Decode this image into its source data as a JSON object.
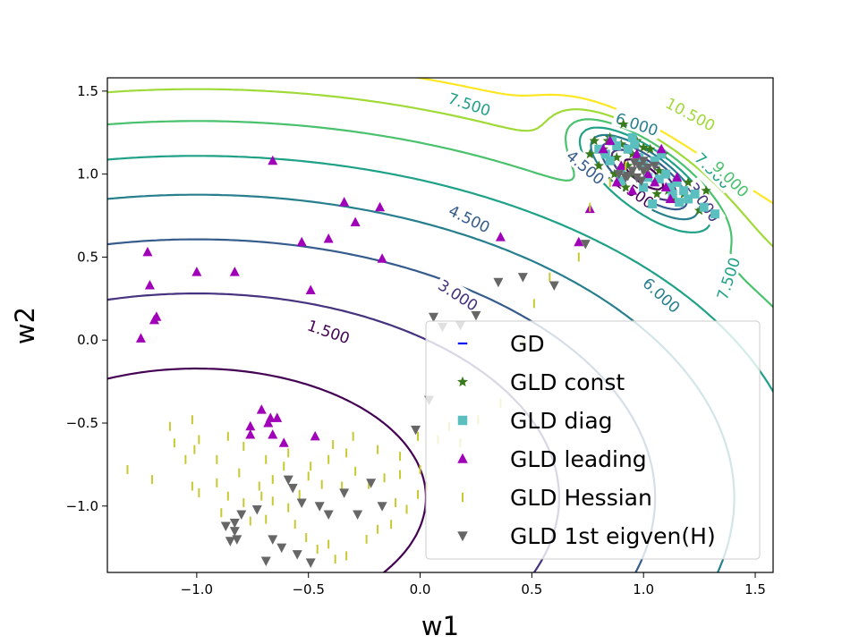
{
  "chart_data": {
    "type": "scatter",
    "title": "",
    "xlabel": "w1",
    "ylabel": "w2",
    "xlim": [
      -1.4,
      1.58
    ],
    "ylim": [
      -1.4,
      1.58
    ],
    "xticks": [
      -1.0,
      -0.5,
      0.0,
      0.5,
      1.0,
      1.5
    ],
    "xtick_labels": [
      "−1.0",
      "−0.5",
      "0.0",
      "0.5",
      "1.0",
      "1.5"
    ],
    "yticks": [
      -1.0,
      -0.5,
      0.0,
      0.5,
      1.0,
      1.5
    ],
    "ytick_labels": [
      "−1.0",
      "−0.5",
      "0.0",
      "0.5",
      "1.0",
      "1.5"
    ],
    "grid": false,
    "legend_position": "lower-right",
    "contours": {
      "levels": [
        1.5,
        3.0,
        4.5,
        6.0,
        7.5,
        9.0,
        10.5,
        12.0
      ],
      "labels": [
        "1.500",
        "3.000",
        "4.500",
        "6.000",
        "7.500",
        "9.000",
        "10.500"
      ],
      "colors": [
        "#440154",
        "#46327e",
        "#365c8d",
        "#277f8e",
        "#1fa187",
        "#4ac16d",
        "#a0da39",
        "#fde725"
      ],
      "inline_labels": [
        {
          "text": "1.500",
          "x": -0.41,
          "y": 0.05,
          "color": "#440154",
          "angle": 19
        },
        {
          "text": "3.000",
          "x": 0.17,
          "y": 0.27,
          "color": "#46327e",
          "angle": 33
        },
        {
          "text": "4.500",
          "x": 0.22,
          "y": 0.73,
          "color": "#365c8d",
          "angle": 26
        },
        {
          "text": "6.000",
          "x": 1.08,
          "y": 0.27,
          "color": "#277f8e",
          "angle": 42
        },
        {
          "text": "7.500",
          "x": 0.22,
          "y": 1.42,
          "color": "#1fa187",
          "angle": 18
        },
        {
          "text": "10.500",
          "x": 1.21,
          "y": 1.36,
          "color": "#a0da39",
          "angle": 28
        },
        {
          "text": "6.000",
          "x": 0.97,
          "y": 1.3,
          "color": "#277f8e",
          "angle": 18
        },
        {
          "text": "4.500",
          "x": 0.74,
          "y": 1.04,
          "color": "#365c8d",
          "angle": 40
        },
        {
          "text": "1.500",
          "x": 0.96,
          "y": 0.89,
          "color": "#440154",
          "angle": 35
        },
        {
          "text": "3.000",
          "x": 1.27,
          "y": 0.83,
          "color": "#46327e",
          "angle": 55
        },
        {
          "text": "7.500",
          "x": 1.31,
          "y": 1.02,
          "color": "#1fa187",
          "angle": 45
        },
        {
          "text": "9.000",
          "x": 1.39,
          "y": 0.97,
          "color": "#4ac16d",
          "angle": 45
        },
        {
          "text": "7.500",
          "x": 1.38,
          "y": 0.37,
          "color": "#1fa187",
          "angle": -72
        }
      ]
    },
    "series": [
      {
        "name": "GD",
        "marker": "hline",
        "color": "#0000ff",
        "points": []
      },
      {
        "name": "GLD const",
        "marker": "star",
        "color": "#3a7a1c",
        "points": [
          [
            0.78,
            1.2
          ],
          [
            0.82,
            1.15
          ],
          [
            0.85,
            1.22
          ],
          [
            0.88,
            1.1
          ],
          [
            0.9,
            1.18
          ],
          [
            0.93,
            1.05
          ],
          [
            0.95,
            1.12
          ],
          [
            0.97,
            1.2
          ],
          [
            0.99,
            1.08
          ],
          [
            1.01,
            1.0
          ],
          [
            1.03,
            1.15
          ],
          [
            1.05,
            0.95
          ],
          [
            1.07,
            1.02
          ],
          [
            1.09,
            1.12
          ],
          [
            0.87,
            1.0
          ],
          [
            0.89,
            0.95
          ],
          [
            0.92,
            0.92
          ],
          [
            1.11,
            0.9
          ],
          [
            1.13,
            0.85
          ],
          [
            1.18,
            0.88
          ],
          [
            1.25,
            0.78
          ],
          [
            1.28,
            0.9
          ],
          [
            0.8,
            1.05
          ],
          [
            0.76,
            1.12
          ],
          [
            0.91,
            1.3
          ],
          [
            0.84,
            1.2
          ],
          [
            1.0,
            1.16
          ],
          [
            1.2,
            0.95
          ],
          [
            0.94,
            1.0
          ],
          [
            1.06,
            0.88
          ]
        ]
      },
      {
        "name": "GLD diag",
        "marker": "square",
        "color": "#5bbfc0",
        "points": [
          [
            0.8,
            1.15
          ],
          [
            0.85,
            1.08
          ],
          [
            0.88,
            1.17
          ],
          [
            0.9,
            1.02
          ],
          [
            0.93,
            1.15
          ],
          [
            0.96,
            1.18
          ],
          [
            0.98,
            1.1
          ],
          [
            1.0,
            1.05
          ],
          [
            1.02,
            0.98
          ],
          [
            1.05,
            1.08
          ],
          [
            1.08,
            1.12
          ],
          [
            1.1,
            1.0
          ],
          [
            1.12,
            0.92
          ],
          [
            1.15,
            0.95
          ],
          [
            1.18,
            0.9
          ],
          [
            1.2,
            0.85
          ],
          [
            1.23,
            0.88
          ],
          [
            1.27,
            0.8
          ],
          [
            1.32,
            0.76
          ],
          [
            0.95,
            1.22
          ],
          [
            0.86,
            1.2
          ],
          [
            1.0,
            0.92
          ],
          [
            1.04,
            0.82
          ],
          [
            1.13,
            0.88
          ],
          [
            0.83,
            1.12
          ],
          [
            0.9,
            0.96
          ],
          [
            1.07,
            0.97
          ],
          [
            1.16,
            0.83
          ]
        ]
      },
      {
        "name": "GLD leading",
        "marker": "triangle-up",
        "color": "#a000b8",
        "points": [
          [
            -0.66,
            1.08
          ],
          [
            -0.34,
            0.83
          ],
          [
            -0.18,
            0.8
          ],
          [
            -0.29,
            0.71
          ],
          [
            -0.41,
            0.61
          ],
          [
            -0.53,
            0.59
          ],
          [
            -0.17,
            0.49
          ],
          [
            -0.83,
            0.41
          ],
          [
            -1.0,
            0.41
          ],
          [
            -1.22,
            0.53
          ],
          [
            -1.21,
            0.33
          ],
          [
            -1.18,
            0.14
          ],
          [
            -1.19,
            0.12
          ],
          [
            -1.25,
            0.01
          ],
          [
            -0.49,
            0.3
          ],
          [
            0.36,
            0.62
          ],
          [
            0.71,
            0.59
          ],
          [
            0.76,
            0.79
          ],
          [
            -0.71,
            -0.42
          ],
          [
            -0.67,
            -0.47
          ],
          [
            -0.64,
            -0.47
          ],
          [
            -0.68,
            -0.5
          ],
          [
            -0.76,
            -0.52
          ],
          [
            -0.76,
            -0.57
          ],
          [
            -0.66,
            -0.57
          ],
          [
            -0.61,
            -0.62
          ],
          [
            -0.47,
            -0.58
          ],
          [
            0.82,
            1.15
          ],
          [
            0.9,
            1.05
          ],
          [
            0.97,
            1.12
          ],
          [
            1.02,
            1.0
          ],
          [
            1.05,
            0.95
          ],
          [
            1.1,
            0.92
          ],
          [
            1.15,
            0.98
          ],
          [
            0.88,
            0.95
          ],
          [
            0.95,
            0.9
          ],
          [
            1.08,
            1.15
          ],
          [
            0.85,
            1.2
          ],
          [
            1.12,
            0.85
          ]
        ]
      },
      {
        "name": "GLD Hessian",
        "marker": "vline",
        "color": "#c8c832",
        "points": [
          [
            -1.31,
            -0.78
          ],
          [
            -1.02,
            -0.88
          ],
          [
            -0.99,
            -0.92
          ],
          [
            -0.91,
            -0.86
          ],
          [
            -0.86,
            -0.94
          ],
          [
            -0.89,
            -1.04
          ],
          [
            -0.79,
            -0.98
          ],
          [
            -0.76,
            -1.09
          ],
          [
            -0.69,
            -1.08
          ],
          [
            -0.71,
            -0.94
          ],
          [
            -0.66,
            -0.97
          ],
          [
            -0.59,
            -1.01
          ],
          [
            -0.56,
            -1.11
          ],
          [
            -0.51,
            -1.19
          ],
          [
            -0.46,
            -1.26
          ],
          [
            -0.41,
            -1.23
          ],
          [
            -0.38,
            -1.32
          ],
          [
            -0.33,
            -1.3
          ],
          [
            -0.24,
            -1.2
          ],
          [
            -0.19,
            -1.14
          ],
          [
            -0.13,
            -1.11
          ],
          [
            -0.11,
            -0.98
          ],
          [
            -0.06,
            -1.02
          ],
          [
            -0.01,
            -0.93
          ],
          [
            -0.09,
            -0.81
          ],
          [
            -0.16,
            -0.83
          ],
          [
            -0.23,
            -0.87
          ],
          [
            -0.29,
            -0.79
          ],
          [
            -0.35,
            -0.88
          ],
          [
            -0.41,
            -0.72
          ],
          [
            -0.44,
            -0.87
          ],
          [
            -0.5,
            -0.82
          ],
          [
            -0.54,
            -0.93
          ],
          [
            -0.61,
            -0.76
          ],
          [
            -0.66,
            -0.84
          ],
          [
            -0.72,
            -0.88
          ],
          [
            -0.81,
            -0.8
          ],
          [
            -0.91,
            -0.72
          ],
          [
            -1.01,
            -0.66
          ],
          [
            -1.1,
            -0.62
          ],
          [
            -1.12,
            -0.52
          ],
          [
            -1.02,
            -0.48
          ],
          [
            -0.99,
            -0.6
          ],
          [
            -1.05,
            -0.72
          ],
          [
            -1.2,
            -0.84
          ],
          [
            -0.86,
            -0.58
          ],
          [
            -0.79,
            -0.64
          ],
          [
            -0.69,
            -0.72
          ],
          [
            -0.59,
            -0.68
          ],
          [
            -0.49,
            -0.76
          ],
          [
            -0.39,
            -0.63
          ],
          [
            -0.33,
            -0.68
          ],
          [
            -0.3,
            -0.58
          ],
          [
            -0.19,
            -0.66
          ],
          [
            -0.09,
            -0.7
          ],
          [
            -0.01,
            -0.58
          ],
          [
            0.0,
            -0.78
          ],
          [
            0.03,
            -0.88
          ],
          [
            0.08,
            -0.6
          ],
          [
            0.13,
            -0.52
          ],
          [
            0.18,
            -0.62
          ],
          [
            0.26,
            -0.48
          ],
          [
            0.36,
            -0.38
          ],
          [
            0.46,
            -0.02
          ],
          [
            0.51,
            0.22
          ],
          [
            0.58,
            0.38
          ],
          [
            0.71,
            0.5
          ],
          [
            0.76,
            0.8
          ],
          [
            0.85,
            0.95
          ],
          [
            0.92,
            1.05
          ]
        ]
      },
      {
        "name": "GLD 1st eigven(H)",
        "marker": "triangle-down",
        "color": "#666666",
        "points": [
          [
            -0.69,
            -1.33
          ],
          [
            -0.55,
            -1.29
          ],
          [
            -0.49,
            -1.34
          ],
          [
            -0.62,
            -1.25
          ],
          [
            -0.66,
            -1.2
          ],
          [
            -0.82,
            -1.2
          ],
          [
            -0.85,
            -1.21
          ],
          [
            -0.83,
            -1.15
          ],
          [
            -0.87,
            -1.12
          ],
          [
            -0.83,
            -1.1
          ],
          [
            -0.8,
            -1.05
          ],
          [
            -0.73,
            -1.02
          ],
          [
            -0.59,
            -0.84
          ],
          [
            -0.57,
            -0.89
          ],
          [
            -0.53,
            -0.98
          ],
          [
            -0.45,
            -1.0
          ],
          [
            -0.41,
            -1.05
          ],
          [
            -0.34,
            -0.92
          ],
          [
            -0.28,
            -1.05
          ],
          [
            -0.22,
            -0.86
          ],
          [
            -0.17,
            -1.0
          ],
          [
            -0.02,
            -0.54
          ],
          [
            0.04,
            -0.36
          ],
          [
            0.06,
            0.14
          ],
          [
            0.1,
            0.08
          ],
          [
            0.18,
            0.09
          ],
          [
            0.25,
            0.15
          ],
          [
            0.35,
            0.35
          ],
          [
            0.46,
            0.38
          ],
          [
            0.6,
            0.33
          ],
          [
            0.74,
            0.58
          ],
          [
            0.92,
            0.98
          ],
          [
            0.95,
            1.02
          ],
          [
            0.98,
            1.05
          ],
          [
            1.0,
            1.02
          ],
          [
            1.02,
            1.04
          ],
          [
            0.97,
            0.98
          ],
          [
            0.93,
            0.99
          ],
          [
            1.0,
            1.08
          ],
          [
            0.89,
            1.0
          ],
          [
            1.05,
            1.05
          ],
          [
            0.96,
            1.07
          ],
          [
            0.99,
            0.96
          ]
        ]
      }
    ]
  }
}
